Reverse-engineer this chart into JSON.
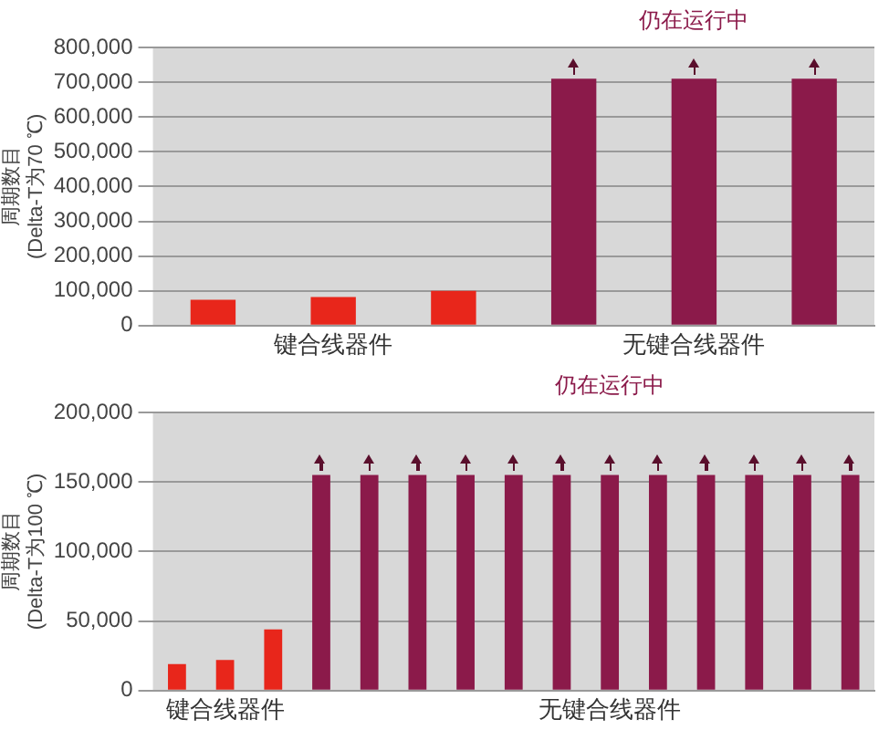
{
  "chart_data": [
    {
      "type": "bar",
      "ylabel": "周期数目\n(Delta-T为70 ℃)",
      "categories": [
        null,
        "键合线器件",
        null,
        null,
        "无键合线器件",
        null
      ],
      "values": [
        74000,
        82000,
        100000,
        710000,
        710000,
        710000
      ],
      "colors": [
        "#e8261b",
        "#e8261b",
        "#e8261b",
        "#8b1a4a",
        "#8b1a4a",
        "#8b1a4a"
      ],
      "ylim": [
        0,
        800000
      ],
      "yticks": [
        0,
        {
          "value": 100000,
          "label": "100,000"
        },
        {
          "value": 200000,
          "label": "200,000"
        },
        {
          "value": 300000,
          "label": "300,000"
        },
        {
          "value": 400000,
          "label": "400,000"
        },
        {
          "value": 500000,
          "label": "500,000"
        },
        {
          "value": 600000,
          "label": "600,000"
        },
        {
          "value": 700000,
          "label": "700,000"
        },
        {
          "value": 800000,
          "label": "800,000"
        }
      ],
      "grid": "y",
      "annotations": [
        "仍在运行中"
      ]
    },
    {
      "type": "bar",
      "ylabel": "周期数目\n(Delta-T为100 ℃)",
      "categories": [
        null,
        "键合线器件",
        null,
        null,
        null,
        null,
        null,
        null,
        null,
        "无键合线器件",
        null,
        null,
        null,
        null,
        null
      ],
      "values": [
        19000,
        22000,
        44000,
        155000,
        155000,
        155000,
        155000,
        155000,
        155000,
        155000,
        155000,
        155000,
        155000,
        155000,
        155000
      ],
      "colors": [
        "#e8261b",
        "#e8261b",
        "#e8261b",
        "#8b1a4a",
        "#8b1a4a",
        "#8b1a4a",
        "#8b1a4a",
        "#8b1a4a",
        "#8b1a4a",
        "#8b1a4a",
        "#8b1a4a",
        "#8b1a4a",
        "#8b1a4a",
        "#8b1a4a",
        "#8b1a4a"
      ],
      "ylim": [
        0,
        200000
      ],
      "yticks": [
        0,
        {
          "value": 50000,
          "label": "50,000"
        },
        {
          "value": 100000,
          "label": "100,000"
        },
        {
          "value": 150000,
          "label": "150,000"
        },
        {
          "value": 200000,
          "label": "200,000"
        }
      ],
      "grid": "y",
      "annotations": [
        "仍在运行中"
      ]
    }
  ]
}
